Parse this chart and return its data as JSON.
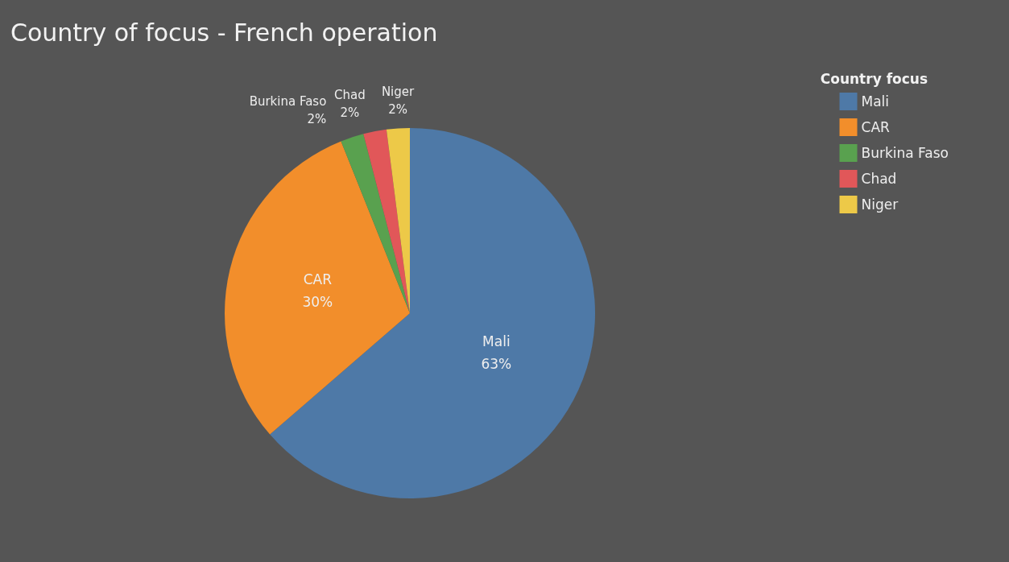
{
  "chart_data": {
    "type": "pie",
    "title": "Country of focus - French operation",
    "legend_title": "Country focus",
    "categories": [
      "Mali",
      "CAR",
      "Burkina Faso",
      "Chad",
      "Niger"
    ],
    "values": [
      63,
      30,
      2,
      2,
      2
    ],
    "value_labels": [
      "63%",
      "30%",
      "2%",
      "2%",
      "2%"
    ],
    "colors": [
      "#4e79a7",
      "#f28e2b",
      "#59a14f",
      "#e15759",
      "#edc948"
    ],
    "legend": "top right"
  }
}
